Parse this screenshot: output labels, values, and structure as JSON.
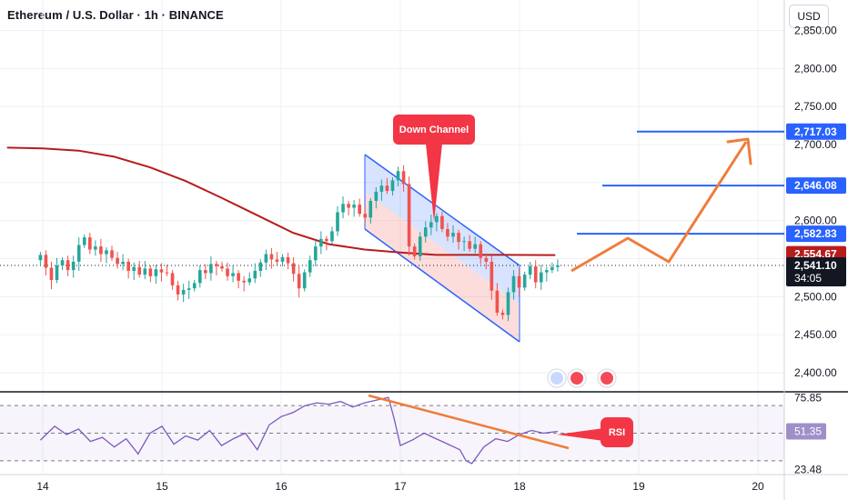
{
  "header": {
    "title": "Ethereum / U.S. Dollar · 1h · BINANCE",
    "currency_button": "USD"
  },
  "colors": {
    "up": "#26a69a",
    "down": "#ef5350",
    "ma": "#b71c1c",
    "orange": "#f07c3a",
    "blue_line": "#2962ff",
    "channel_border": "#2962ff",
    "rsi_line": "#7e57c2",
    "callout": "#f23645",
    "grid": "#eef0f3"
  },
  "chart_data": [
    {
      "type": "candlestick",
      "symbol": "ETHUSD",
      "interval": "1h",
      "exchange": "BINANCE",
      "ylim": [
        2375,
        2890
      ],
      "x_ticks": [
        "14",
        "15",
        "16",
        "17",
        "18",
        "19",
        "20"
      ],
      "y_ticks": [
        "2,850.00",
        "2,800.00",
        "2,750.00",
        "2,700.00",
        "2,650.00",
        "2,600.00",
        "2,550.00",
        "2,500.00",
        "2,450.00",
        "2,400.00"
      ],
      "price_labels": {
        "target_1": "2,717.03",
        "target_2": "2,646.08",
        "target_3": "2,582.83",
        "moving_average": "2,554.67",
        "last_price": "2,541.10",
        "countdown": "34:05"
      },
      "levels": [
        2717.03,
        2646.08,
        2582.83
      ],
      "moving_average_value": 2554.67,
      "last_price_value": 2541.1,
      "annotations": {
        "channel": "Down Channel",
        "rsi_callout": "RSI"
      },
      "moving_average_path": [
        [
          13.7,
          2696
        ],
        [
          14.0,
          2695
        ],
        [
          14.3,
          2692
        ],
        [
          14.6,
          2684
        ],
        [
          14.9,
          2670
        ],
        [
          15.2,
          2652
        ],
        [
          15.5,
          2630
        ],
        [
          15.8,
          2607
        ],
        [
          16.1,
          2584
        ],
        [
          16.4,
          2569
        ],
        [
          16.7,
          2562
        ],
        [
          17.0,
          2558
        ],
        [
          17.3,
          2555
        ],
        [
          17.6,
          2555
        ],
        [
          17.9,
          2555
        ],
        [
          18.3,
          2554.67
        ]
      ],
      "candles": [
        [
          2548,
          2555
        ],
        [
          2555,
          2538
        ],
        [
          2538,
          2522
        ],
        [
          2522,
          2541
        ],
        [
          2541,
          2548
        ],
        [
          2548,
          2535
        ],
        [
          2535,
          2546
        ],
        [
          2546,
          2568
        ],
        [
          2568,
          2578
        ],
        [
          2578,
          2562
        ],
        [
          2562,
          2566
        ],
        [
          2566,
          2556
        ],
        [
          2556,
          2561
        ],
        [
          2561,
          2551
        ],
        [
          2551,
          2543
        ],
        [
          2543,
          2546
        ],
        [
          2546,
          2534
        ],
        [
          2534,
          2539
        ],
        [
          2539,
          2529
        ],
        [
          2529,
          2537
        ],
        [
          2537,
          2527
        ],
        [
          2527,
          2536
        ],
        [
          2536,
          2532
        ],
        [
          2532,
          2531
        ],
        [
          2531,
          2515
        ],
        [
          2515,
          2503
        ],
        [
          2503,
          2509
        ],
        [
          2509,
          2511
        ],
        [
          2511,
          2518
        ],
        [
          2518,
          2535
        ],
        [
          2535,
          2531
        ],
        [
          2531,
          2543
        ],
        [
          2543,
          2540
        ],
        [
          2540,
          2537
        ],
        [
          2537,
          2527
        ],
        [
          2527,
          2531
        ],
        [
          2531,
          2521
        ],
        [
          2521,
          2519
        ],
        [
          2519,
          2524
        ],
        [
          2524,
          2534
        ],
        [
          2534,
          2545
        ],
        [
          2545,
          2556
        ],
        [
          2556,
          2549
        ],
        [
          2549,
          2546
        ],
        [
          2546,
          2552
        ],
        [
          2552,
          2544
        ],
        [
          2544,
          2530
        ],
        [
          2530,
          2511
        ],
        [
          2511,
          2532
        ],
        [
          2532,
          2548
        ],
        [
          2548,
          2566
        ],
        [
          2566,
          2576
        ],
        [
          2576,
          2573
        ],
        [
          2573,
          2586
        ],
        [
          2586,
          2611
        ],
        [
          2611,
          2622
        ],
        [
          2622,
          2617
        ],
        [
          2617,
          2621
        ],
        [
          2621,
          2609
        ],
        [
          2609,
          2604
        ],
        [
          2604,
          2626
        ],
        [
          2626,
          2638
        ],
        [
          2638,
          2646
        ],
        [
          2646,
          2639
        ],
        [
          2639,
          2653
        ],
        [
          2653,
          2665
        ],
        [
          2665,
          2648
        ],
        [
          2648,
          2566
        ],
        [
          2566,
          2553
        ],
        [
          2553,
          2579
        ],
        [
          2579,
          2591
        ],
        [
          2591,
          2598
        ],
        [
          2598,
          2606
        ],
        [
          2606,
          2589
        ],
        [
          2589,
          2579
        ],
        [
          2579,
          2584
        ],
        [
          2584,
          2572
        ],
        [
          2572,
          2573
        ],
        [
          2573,
          2563
        ],
        [
          2563,
          2569
        ],
        [
          2569,
          2551
        ],
        [
          2551,
          2546
        ],
        [
          2546,
          2508
        ],
        [
          2508,
          2479
        ],
        [
          2479,
          2476
        ],
        [
          2476,
          2506
        ],
        [
          2506,
          2527
        ],
        [
          2527,
          2512
        ],
        [
          2512,
          2529
        ],
        [
          2529,
          2540
        ],
        [
          2540,
          2519
        ],
        [
          2519,
          2532
        ],
        [
          2532,
          2535
        ],
        [
          2535,
          2539
        ],
        [
          2539,
          2541.1
        ]
      ],
      "candle_range": {
        "x_start": 13.98,
        "x_end": 18.32
      }
    },
    {
      "type": "line",
      "name": "RSI",
      "ylim": [
        20,
        80
      ],
      "y_ticks": [
        "75.85",
        "51.35",
        "23.48"
      ],
      "x": [
        13.98,
        14.1,
        14.2,
        14.3,
        14.4,
        14.5,
        14.6,
        14.7,
        14.8,
        14.9,
        15.0,
        15.1,
        15.2,
        15.3,
        15.4,
        15.5,
        15.6,
        15.7,
        15.8,
        15.9,
        16.0,
        16.1,
        16.2,
        16.3,
        16.4,
        16.5,
        16.6,
        16.7,
        16.8,
        16.9,
        16.95,
        17.0,
        17.1,
        17.2,
        17.3,
        17.4,
        17.5,
        17.55,
        17.6,
        17.7,
        17.8,
        17.9,
        18.0,
        18.1,
        18.2,
        18.32
      ],
      "y": [
        45,
        55,
        49,
        53,
        44,
        47,
        40,
        46,
        35,
        50,
        55,
        42,
        48,
        45,
        52,
        41,
        46,
        50,
        38,
        56,
        62,
        65,
        70,
        72,
        71,
        73,
        69,
        72,
        74,
        76,
        60,
        41,
        45,
        50,
        46,
        42,
        38,
        30,
        28,
        40,
        46,
        44,
        49,
        52,
        50,
        51.35
      ],
      "current_value": "51.35",
      "upper_band": 70,
      "middle_band": 50,
      "lower_band": 30
    }
  ]
}
